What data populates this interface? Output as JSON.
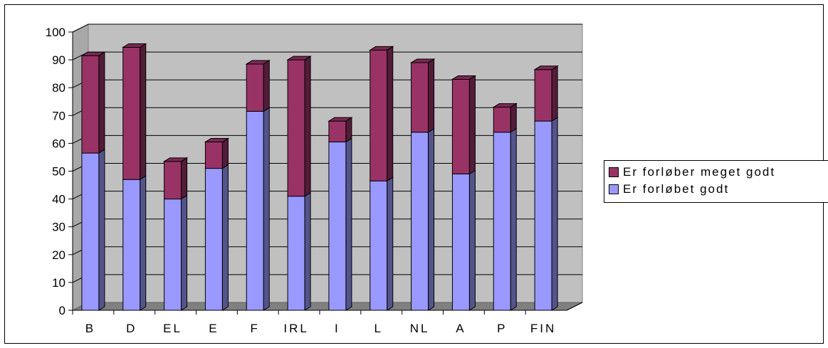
{
  "chart_data": {
    "type": "bar",
    "stacked": true,
    "style": "3d-column",
    "categories": [
      "B",
      "D",
      "EL",
      "E",
      "F",
      "IRL",
      "I",
      "L",
      "NL",
      "A",
      "P",
      "FIN"
    ],
    "series": [
      {
        "name": "Er forløbet godt",
        "color": "#9999ff",
        "values": [
          56.5,
          47,
          40,
          51,
          71.5,
          41,
          60.5,
          46.5,
          64,
          49,
          64,
          68
        ]
      },
      {
        "name": "Er forløber meget godt",
        "color": "#993366",
        "values": [
          35,
          47.5,
          13.5,
          9.5,
          17,
          49,
          7.5,
          47,
          25,
          34,
          9,
          18.5
        ]
      }
    ],
    "y_ticks": [
      "0",
      "10",
      "20",
      "30",
      "40",
      "50",
      "60",
      "70",
      "80",
      "90",
      "100"
    ],
    "ylim": [
      0,
      100
    ],
    "grid": true,
    "legend_position": "right"
  },
  "legend": {
    "items": [
      {
        "label": "Er forløber meget godt",
        "color": "#993366"
      },
      {
        "label": "Er forløbet godt",
        "color": "#9999ff"
      }
    ]
  }
}
